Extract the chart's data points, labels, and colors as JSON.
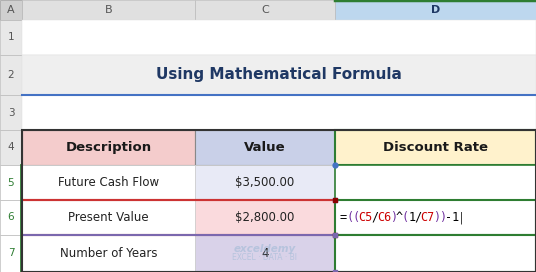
{
  "title": "Using Mathematical Formula",
  "col_headers": [
    "Description",
    "Value",
    "Discount Rate"
  ],
  "rows": [
    [
      "Future Cash Flow",
      "$3,500.00",
      ""
    ],
    [
      "Present Value",
      "$2,800.00",
      ""
    ],
    [
      "Number of Years",
      "4",
      ""
    ]
  ],
  "col_letters": [
    "A",
    "B",
    "C",
    "D"
  ],
  "row_numbers": [
    "1",
    "2",
    "3",
    "4",
    "5",
    "6",
    "7"
  ],
  "header_bg_desc": "#F4CCCC",
  "header_bg_value": "#C9D0E8",
  "header_bg_discount": "#FFF2CC",
  "row5_bg_value": "#E8EAF6",
  "row6_bg_value": "#FADADD",
  "row7_bg_value": "#D9D2E9",
  "title_bg": "#EDEDED",
  "title_color": "#1F3864",
  "separator_line_color": "#4472C4",
  "col_header_bg": "#E0E0E0",
  "row_num_bg": "#E0E0E0",
  "row_num_selected_bg": "#FFFFFF",
  "row_num_selected_color": "#2E7D32",
  "col_d_header_bg": "#BDD7EE",
  "col_d_header_color": "#1F3864",
  "green_border": "#2E7D32",
  "red_border": "#CC3333",
  "purple_border": "#7B68AE",
  "blue_corner": "#4472C4",
  "bg_white": "#FFFFFF",
  "cell_border": "#AAAAAA",
  "formula_parts": [
    [
      "=",
      "#000000"
    ],
    [
      "((C5/C6)^(1/C7))",
      "#CC0000"
    ],
    [
      "-1",
      "#000000"
    ],
    [
      "|",
      "#333333"
    ]
  ],
  "formula_paren_color": "#7030A0",
  "formula_cell_color": "#CC0000",
  "formula_op_color": "#000000",
  "watermark_color": "#9BB8D4",
  "watermark_alpha": 0.55
}
